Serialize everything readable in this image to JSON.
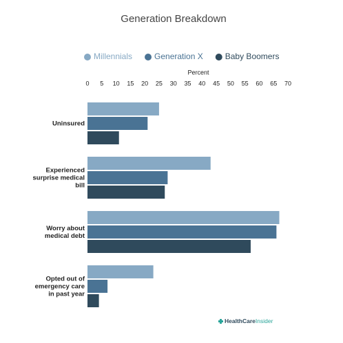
{
  "chart_data": {
    "type": "hbar",
    "title": "Generation Breakdown",
    "xlabel": "Percent",
    "categories": [
      "Uninsured",
      "Experienced surprise medical bill",
      "Worry about medical debt",
      "Opted out of emergency care in past year"
    ],
    "series": [
      {
        "name": "Millennials",
        "color": "#87a9c4",
        "values": [
          25,
          43,
          67,
          23
        ]
      },
      {
        "name": "Generation X",
        "color": "#4a7394",
        "values": [
          21,
          28,
          66,
          7
        ]
      },
      {
        "name": "Baby Boomers",
        "color": "#2f4a5c",
        "values": [
          11,
          27,
          57,
          4
        ]
      }
    ],
    "xlim": [
      0,
      70
    ],
    "xticks": [
      0,
      5,
      10,
      15,
      20,
      25,
      30,
      35,
      40,
      45,
      50,
      55,
      60,
      65,
      70
    ],
    "grid": false
  },
  "logo": {
    "brand": "HealthCare",
    "suffix": "Insider"
  }
}
